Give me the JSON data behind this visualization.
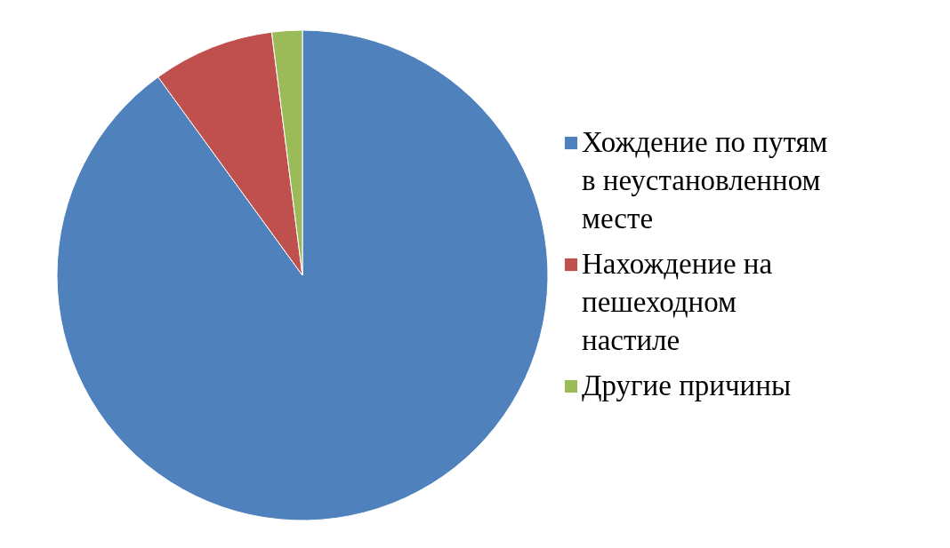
{
  "chart_data": {
    "type": "pie",
    "categories": [
      "Хождение по путям в неустановленном месте",
      "Нахождение на пешеходном настиле",
      "Другие причины"
    ],
    "values": [
      90,
      8,
      2
    ],
    "colors": [
      "#4f81bd",
      "#c0504d",
      "#9bbb59"
    ],
    "legend": "right"
  }
}
